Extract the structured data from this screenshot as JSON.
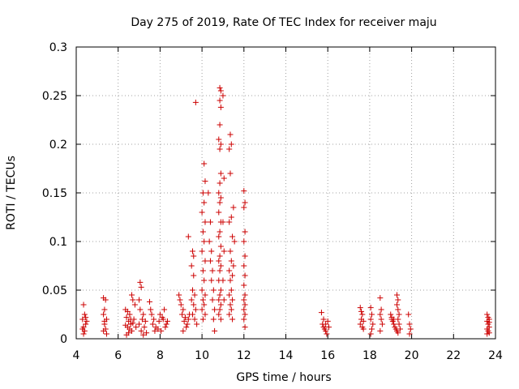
{
  "chart_data": {
    "type": "scatter",
    "title": "Day 275 of 2019, Rate Of TEC Index for receiver maju",
    "xlabel": "GPS time / hours",
    "ylabel": "ROTI / TECUs",
    "xlim": [
      4,
      24
    ],
    "ylim": [
      0,
      0.3
    ],
    "xticks": [
      4,
      6,
      8,
      10,
      12,
      14,
      16,
      18,
      20,
      22,
      24
    ],
    "xtick_labels": [
      "4",
      "6",
      "8",
      "10",
      "12",
      "14",
      "16",
      "18",
      "20",
      "22",
      "24"
    ],
    "yticks": [
      0,
      0.05,
      0.1,
      0.15,
      0.2,
      0.25,
      0.3
    ],
    "ytick_labels": [
      "0",
      "0.05",
      "0.1",
      "0.15",
      "0.2",
      "0.25",
      "0.3"
    ],
    "grid": true,
    "marker": "+",
    "color": "#cc0000",
    "series": [
      {
        "name": "ROTI",
        "points": [
          [
            4.35,
            0.035
          ],
          [
            4.4,
            0.025
          ],
          [
            4.3,
            0.02
          ],
          [
            4.45,
            0.015
          ],
          [
            4.35,
            0.012
          ],
          [
            4.4,
            0.008
          ],
          [
            4.5,
            0.018
          ],
          [
            4.3,
            0.01
          ],
          [
            4.45,
            0.022
          ],
          [
            4.35,
            0.005
          ],
          [
            5.3,
            0.042
          ],
          [
            5.4,
            0.04
          ],
          [
            5.35,
            0.03
          ],
          [
            5.3,
            0.025
          ],
          [
            5.45,
            0.02
          ],
          [
            5.35,
            0.015
          ],
          [
            5.4,
            0.01
          ],
          [
            5.3,
            0.008
          ],
          [
            5.45,
            0.005
          ],
          [
            5.35,
            0.018
          ],
          [
            6.35,
            0.03
          ],
          [
            6.45,
            0.028
          ],
          [
            6.55,
            0.025
          ],
          [
            6.4,
            0.022
          ],
          [
            6.6,
            0.02
          ],
          [
            6.5,
            0.018
          ],
          [
            6.7,
            0.016
          ],
          [
            6.35,
            0.014
          ],
          [
            6.45,
            0.012
          ],
          [
            6.55,
            0.01
          ],
          [
            6.65,
            0.008
          ],
          [
            6.5,
            0.006
          ],
          [
            6.4,
            0.004
          ],
          [
            6.6,
            0.015
          ],
          [
            6.65,
            0.045
          ],
          [
            6.7,
            0.04
          ],
          [
            6.8,
            0.035
          ],
          [
            6.75,
            0.02
          ],
          [
            6.85,
            0.012
          ],
          [
            7.05,
            0.058
          ],
          [
            7.1,
            0.053
          ],
          [
            7.0,
            0.04
          ],
          [
            7.05,
            0.03
          ],
          [
            7.2,
            0.025
          ],
          [
            7.15,
            0.02
          ],
          [
            7.3,
            0.018
          ],
          [
            7.0,
            0.015
          ],
          [
            7.25,
            0.012
          ],
          [
            7.1,
            0.008
          ],
          [
            7.35,
            0.006
          ],
          [
            7.2,
            0.004
          ],
          [
            7.5,
            0.038
          ],
          [
            7.55,
            0.03
          ],
          [
            7.6,
            0.025
          ],
          [
            7.7,
            0.02
          ],
          [
            7.65,
            0.015
          ],
          [
            7.8,
            0.012
          ],
          [
            7.75,
            0.008
          ],
          [
            7.9,
            0.01
          ],
          [
            7.95,
            0.018
          ],
          [
            8.0,
            0.025
          ],
          [
            8.1,
            0.022
          ],
          [
            8.2,
            0.03
          ],
          [
            8.15,
            0.02
          ],
          [
            8.3,
            0.015
          ],
          [
            8.25,
            0.012
          ],
          [
            8.35,
            0.018
          ],
          [
            8.05,
            0.008
          ],
          [
            8.9,
            0.045
          ],
          [
            8.95,
            0.04
          ],
          [
            9.0,
            0.035
          ],
          [
            9.1,
            0.03
          ],
          [
            9.05,
            0.025
          ],
          [
            9.2,
            0.022
          ],
          [
            9.15,
            0.018
          ],
          [
            9.3,
            0.015
          ],
          [
            9.25,
            0.012
          ],
          [
            9.1,
            0.008
          ],
          [
            9.35,
            0.02
          ],
          [
            9.4,
            0.025
          ],
          [
            9.35,
            0.105
          ],
          [
            9.55,
            0.09
          ],
          [
            9.6,
            0.085
          ],
          [
            9.5,
            0.075
          ],
          [
            9.6,
            0.065
          ],
          [
            9.55,
            0.05
          ],
          [
            9.65,
            0.045
          ],
          [
            9.5,
            0.04
          ],
          [
            9.6,
            0.035
          ],
          [
            9.7,
            0.03
          ],
          [
            9.55,
            0.025
          ],
          [
            9.65,
            0.02
          ],
          [
            9.75,
            0.015
          ],
          [
            9.7,
            0.243
          ],
          [
            10.1,
            0.18
          ],
          [
            10.15,
            0.162
          ],
          [
            10.05,
            0.15
          ],
          [
            10.1,
            0.14
          ],
          [
            10.0,
            0.13
          ],
          [
            10.15,
            0.12
          ],
          [
            10.05,
            0.11
          ],
          [
            10.1,
            0.1
          ],
          [
            10.0,
            0.09
          ],
          [
            10.15,
            0.08
          ],
          [
            10.05,
            0.07
          ],
          [
            10.1,
            0.06
          ],
          [
            10.0,
            0.05
          ],
          [
            10.15,
            0.045
          ],
          [
            10.05,
            0.04
          ],
          [
            10.1,
            0.035
          ],
          [
            10.0,
            0.03
          ],
          [
            10.15,
            0.025
          ],
          [
            10.05,
            0.02
          ],
          [
            10.3,
            0.15
          ],
          [
            10.4,
            0.12
          ],
          [
            10.35,
            0.1
          ],
          [
            10.45,
            0.09
          ],
          [
            10.4,
            0.08
          ],
          [
            10.5,
            0.07
          ],
          [
            10.45,
            0.06
          ],
          [
            10.55,
            0.05
          ],
          [
            10.5,
            0.04
          ],
          [
            10.6,
            0.03
          ],
          [
            10.55,
            0.02
          ],
          [
            10.6,
            0.008
          ],
          [
            10.85,
            0.258
          ],
          [
            10.9,
            0.255
          ],
          [
            10.85,
            0.245
          ],
          [
            10.9,
            0.238
          ],
          [
            10.85,
            0.22
          ],
          [
            10.8,
            0.205
          ],
          [
            10.9,
            0.2
          ],
          [
            10.85,
            0.195
          ],
          [
            10.9,
            0.17
          ],
          [
            10.85,
            0.16
          ],
          [
            10.8,
            0.15
          ],
          [
            10.9,
            0.145
          ],
          [
            10.85,
            0.14
          ],
          [
            10.8,
            0.13
          ],
          [
            10.9,
            0.12
          ],
          [
            10.85,
            0.11
          ],
          [
            10.8,
            0.105
          ],
          [
            10.9,
            0.095
          ],
          [
            10.85,
            0.085
          ],
          [
            10.8,
            0.08
          ],
          [
            10.9,
            0.075
          ],
          [
            10.85,
            0.07
          ],
          [
            10.8,
            0.06
          ],
          [
            10.9,
            0.05
          ],
          [
            10.85,
            0.045
          ],
          [
            10.8,
            0.04
          ],
          [
            10.9,
            0.035
          ],
          [
            10.85,
            0.03
          ],
          [
            10.8,
            0.025
          ],
          [
            10.9,
            0.02
          ],
          [
            11.0,
            0.25
          ],
          [
            11.05,
            0.165
          ],
          [
            11.0,
            0.12
          ],
          [
            11.05,
            0.09
          ],
          [
            11.0,
            0.06
          ],
          [
            11.05,
            0.04
          ],
          [
            11.35,
            0.21
          ],
          [
            11.4,
            0.2
          ],
          [
            11.3,
            0.195
          ],
          [
            11.35,
            0.17
          ],
          [
            11.4,
            0.125
          ],
          [
            11.3,
            0.12
          ],
          [
            11.45,
            0.105
          ],
          [
            11.35,
            0.09
          ],
          [
            11.4,
            0.08
          ],
          [
            11.3,
            0.07
          ],
          [
            11.45,
            0.065
          ],
          [
            11.35,
            0.06
          ],
          [
            11.4,
            0.05
          ],
          [
            11.3,
            0.045
          ],
          [
            11.45,
            0.04
          ],
          [
            11.35,
            0.035
          ],
          [
            11.4,
            0.03
          ],
          [
            11.3,
            0.025
          ],
          [
            11.45,
            0.02
          ],
          [
            11.5,
            0.135
          ],
          [
            11.55,
            0.1
          ],
          [
            11.5,
            0.075
          ],
          [
            12.0,
            0.152
          ],
          [
            12.05,
            0.14
          ],
          [
            12.0,
            0.135
          ],
          [
            12.05,
            0.11
          ],
          [
            12.0,
            0.1
          ],
          [
            12.05,
            0.085
          ],
          [
            12.0,
            0.075
          ],
          [
            12.05,
            0.065
          ],
          [
            12.0,
            0.055
          ],
          [
            12.05,
            0.045
          ],
          [
            12.0,
            0.04
          ],
          [
            12.05,
            0.035
          ],
          [
            12.0,
            0.03
          ],
          [
            12.05,
            0.025
          ],
          [
            12.0,
            0.02
          ],
          [
            12.05,
            0.012
          ],
          [
            15.7,
            0.027
          ],
          [
            15.75,
            0.015
          ],
          [
            15.8,
            0.012
          ],
          [
            15.85,
            0.01
          ],
          [
            15.9,
            0.008
          ],
          [
            15.95,
            0.005
          ],
          [
            16.0,
            0.018
          ],
          [
            15.8,
            0.02
          ],
          [
            15.9,
            0.015
          ],
          [
            16.05,
            0.012
          ],
          [
            17.55,
            0.032
          ],
          [
            17.6,
            0.028
          ],
          [
            17.65,
            0.025
          ],
          [
            17.6,
            0.02
          ],
          [
            17.7,
            0.018
          ],
          [
            17.55,
            0.015
          ],
          [
            17.65,
            0.012
          ],
          [
            17.7,
            0.01
          ],
          [
            18.05,
            0.032
          ],
          [
            18.1,
            0.025
          ],
          [
            18.05,
            0.02
          ],
          [
            18.15,
            0.015
          ],
          [
            18.1,
            0.01
          ],
          [
            18.05,
            0.005
          ],
          [
            18.5,
            0.042
          ],
          [
            18.55,
            0.03
          ],
          [
            18.5,
            0.025
          ],
          [
            18.55,
            0.02
          ],
          [
            18.6,
            0.015
          ],
          [
            18.5,
            0.008
          ],
          [
            19.0,
            0.025
          ],
          [
            19.05,
            0.02
          ],
          [
            19.1,
            0.018
          ],
          [
            19.15,
            0.015
          ],
          [
            19.2,
            0.012
          ],
          [
            19.25,
            0.01
          ],
          [
            19.3,
            0.008
          ],
          [
            19.35,
            0.006
          ],
          [
            19.05,
            0.022
          ],
          [
            19.15,
            0.02
          ],
          [
            19.3,
            0.045
          ],
          [
            19.35,
            0.04
          ],
          [
            19.3,
            0.035
          ],
          [
            19.35,
            0.03
          ],
          [
            19.4,
            0.025
          ],
          [
            19.35,
            0.02
          ],
          [
            19.4,
            0.015
          ],
          [
            19.45,
            0.01
          ],
          [
            19.85,
            0.025
          ],
          [
            19.9,
            0.015
          ],
          [
            19.95,
            0.01
          ],
          [
            19.9,
            0.005
          ],
          [
            23.6,
            0.025
          ],
          [
            23.65,
            0.022
          ],
          [
            23.7,
            0.02
          ],
          [
            23.6,
            0.018
          ],
          [
            23.65,
            0.015
          ],
          [
            23.7,
            0.012
          ],
          [
            23.6,
            0.01
          ],
          [
            23.65,
            0.008
          ],
          [
            23.7,
            0.006
          ],
          [
            23.6,
            0.005
          ],
          [
            23.7,
            0.017
          ]
        ]
      }
    ]
  }
}
